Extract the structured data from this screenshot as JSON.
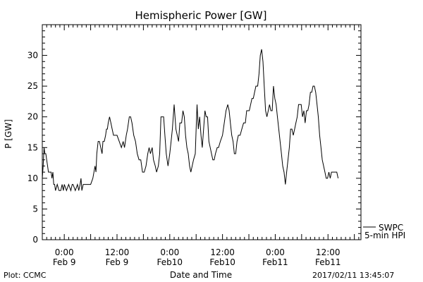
{
  "chart_data": {
    "type": "line",
    "title": "Hemispheric Power [GW]",
    "xlabel": "Date and Time",
    "ylabel": "P [GW]",
    "ylim": [
      0,
      35
    ],
    "y_ticks": [
      0,
      5,
      10,
      15,
      20,
      25,
      30
    ],
    "xlim_hours": [
      -5,
      67.5
    ],
    "x_ticks": [
      {
        "hour": 0,
        "time": "0:00",
        "date": "Feb 9"
      },
      {
        "hour": 12,
        "time": "12:00",
        "date": "Feb 9"
      },
      {
        "hour": 24,
        "time": "0:00",
        "date": "Feb10"
      },
      {
        "hour": 36,
        "time": "12:00",
        "date": "Feb10"
      },
      {
        "hour": 48,
        "time": "0:00",
        "date": "Feb11"
      },
      {
        "hour": 60,
        "time": "12:00",
        "date": "Feb11"
      }
    ],
    "grid": false,
    "legend": {
      "placement": "bottom-right",
      "entries": [
        "SWPC",
        "5-min HPI"
      ]
    },
    "series": [
      {
        "name": "SWPC 5-min HPI",
        "points": [
          [
            -5,
            10
          ],
          [
            -4.8,
            12
          ],
          [
            -4.6,
            15
          ],
          [
            -4.4,
            14
          ],
          [
            -4.2,
            14
          ],
          [
            -4,
            13
          ],
          [
            -3.8,
            12
          ],
          [
            -3.6,
            11
          ],
          [
            -3.4,
            11
          ],
          [
            -3.2,
            11
          ],
          [
            -3,
            11
          ],
          [
            -2.8,
            10
          ],
          [
            -2.6,
            11
          ],
          [
            -2.4,
            9
          ],
          [
            -2.2,
            9
          ],
          [
            -2,
            8
          ],
          [
            -1.6,
            9
          ],
          [
            -1.2,
            8
          ],
          [
            -0.8,
            8
          ],
          [
            -0.5,
            9
          ],
          [
            -0.2,
            8
          ],
          [
            0,
            9
          ],
          [
            0.5,
            8
          ],
          [
            1,
            9
          ],
          [
            1.5,
            8
          ],
          [
            1.8,
            9
          ],
          [
            2,
            9
          ],
          [
            2.5,
            8
          ],
          [
            3,
            9
          ],
          [
            3.3,
            8
          ],
          [
            3.6,
            9
          ],
          [
            3.8,
            10
          ],
          [
            4,
            8
          ],
          [
            4.3,
            9
          ],
          [
            4.7,
            9
          ],
          [
            5.2,
            9
          ],
          [
            5.6,
            9
          ],
          [
            6,
            9
          ],
          [
            6.5,
            10
          ],
          [
            7,
            12
          ],
          [
            7.2,
            11
          ],
          [
            7.4,
            14
          ],
          [
            7.7,
            16
          ],
          [
            8,
            16
          ],
          [
            8.3,
            15
          ],
          [
            8.6,
            14
          ],
          [
            8.8,
            16
          ],
          [
            9.1,
            16
          ],
          [
            9.4,
            17
          ],
          [
            9.6,
            18
          ],
          [
            9.8,
            18
          ],
          [
            10,
            19
          ],
          [
            10.3,
            20
          ],
          [
            10.6,
            19
          ],
          [
            10.9,
            18
          ],
          [
            11.2,
            17
          ],
          [
            12,
            17
          ],
          [
            12.5,
            16
          ],
          [
            13,
            15
          ],
          [
            13.4,
            16
          ],
          [
            13.7,
            15
          ],
          [
            14.1,
            17
          ],
          [
            14.4,
            18
          ],
          [
            14.8,
            20
          ],
          [
            15.1,
            20
          ],
          [
            15.4,
            19
          ],
          [
            15.8,
            17
          ],
          [
            16.2,
            16
          ],
          [
            16.6,
            14
          ],
          [
            17,
            13
          ],
          [
            17.4,
            13
          ],
          [
            17.8,
            11
          ],
          [
            18.2,
            11
          ],
          [
            18.6,
            12
          ],
          [
            19,
            14
          ],
          [
            19.3,
            15
          ],
          [
            19.6,
            14
          ],
          [
            20,
            15
          ],
          [
            20.3,
            13
          ],
          [
            20.7,
            12
          ],
          [
            21,
            11
          ],
          [
            21.4,
            12
          ],
          [
            21.7,
            14
          ],
          [
            22,
            20
          ],
          [
            22.3,
            20
          ],
          [
            22.6,
            20
          ],
          [
            22.9,
            17
          ],
          [
            23.2,
            14
          ],
          [
            23.6,
            12
          ],
          [
            24,
            14
          ],
          [
            24.3,
            16
          ],
          [
            24.6,
            18
          ],
          [
            25,
            22
          ],
          [
            25.4,
            18
          ],
          [
            25.7,
            17
          ],
          [
            26,
            16
          ],
          [
            26.3,
            19
          ],
          [
            26.7,
            19
          ],
          [
            27,
            21
          ],
          [
            27.3,
            20
          ],
          [
            27.6,
            17
          ],
          [
            27.9,
            15
          ],
          [
            28.2,
            14
          ],
          [
            28.5,
            12
          ],
          [
            28.8,
            11
          ],
          [
            29.1,
            12
          ],
          [
            29.4,
            13
          ],
          [
            29.8,
            14
          ],
          [
            30,
            18
          ],
          [
            30.2,
            22
          ],
          [
            30.5,
            18
          ],
          [
            30.8,
            20
          ],
          [
            31.1,
            17
          ],
          [
            31.4,
            15
          ],
          [
            31.7,
            18
          ],
          [
            32,
            21
          ],
          [
            32.3,
            20
          ],
          [
            32.6,
            20
          ],
          [
            32.9,
            16
          ],
          [
            33.2,
            15
          ],
          [
            33.5,
            14
          ],
          [
            33.8,
            13
          ],
          [
            34.1,
            13
          ],
          [
            34.4,
            14
          ],
          [
            34.8,
            15
          ],
          [
            35.1,
            15
          ],
          [
            35.5,
            16
          ],
          [
            36,
            17
          ],
          [
            36.4,
            19
          ],
          [
            36.8,
            21
          ],
          [
            37.2,
            22
          ],
          [
            37.5,
            21
          ],
          [
            37.8,
            19
          ],
          [
            38.1,
            17
          ],
          [
            38.4,
            16
          ],
          [
            38.7,
            14
          ],
          [
            39,
            14
          ],
          [
            39.3,
            16
          ],
          [
            39.6,
            17
          ],
          [
            40,
            17
          ],
          [
            40.4,
            18
          ],
          [
            40.8,
            19
          ],
          [
            41.2,
            19
          ],
          [
            41.5,
            21
          ],
          [
            41.8,
            21
          ],
          [
            42.1,
            21
          ],
          [
            42.4,
            22
          ],
          [
            42.7,
            23
          ],
          [
            43,
            23
          ],
          [
            43.3,
            24
          ],
          [
            43.6,
            25
          ],
          [
            44,
            25
          ],
          [
            44.3,
            27
          ],
          [
            44.6,
            30
          ],
          [
            44.9,
            31
          ],
          [
            45.2,
            29
          ],
          [
            45.5,
            25
          ],
          [
            45.8,
            21
          ],
          [
            46.1,
            20
          ],
          [
            46.4,
            21
          ],
          [
            46.7,
            22
          ],
          [
            47,
            21
          ],
          [
            47.3,
            21
          ],
          [
            47.6,
            25
          ],
          [
            47.9,
            23
          ],
          [
            48.2,
            22
          ],
          [
            48.5,
            20
          ],
          [
            48.8,
            18
          ],
          [
            49.1,
            16
          ],
          [
            49.4,
            14
          ],
          [
            49.7,
            12
          ],
          [
            50,
            11
          ],
          [
            50.3,
            9
          ],
          [
            50.6,
            11
          ],
          [
            50.9,
            13
          ],
          [
            51.2,
            15
          ],
          [
            51.5,
            18
          ],
          [
            51.8,
            18
          ],
          [
            52.1,
            17
          ],
          [
            52.4,
            18
          ],
          [
            52.7,
            19
          ],
          [
            53,
            20
          ],
          [
            53.3,
            22
          ],
          [
            53.6,
            22
          ],
          [
            53.9,
            22
          ],
          [
            54.2,
            20
          ],
          [
            54.5,
            21
          ],
          [
            54.8,
            19
          ],
          [
            55.1,
            21
          ],
          [
            55.4,
            21
          ],
          [
            55.7,
            22
          ],
          [
            56,
            24
          ],
          [
            56.3,
            24
          ],
          [
            56.6,
            25
          ],
          [
            56.9,
            25
          ],
          [
            57.2,
            24
          ],
          [
            57.5,
            22
          ],
          [
            57.8,
            20
          ],
          [
            58.1,
            17
          ],
          [
            58.4,
            15
          ],
          [
            58.7,
            13
          ],
          [
            59,
            12
          ],
          [
            59.3,
            11
          ],
          [
            59.6,
            10
          ],
          [
            59.9,
            10
          ],
          [
            60.2,
            11
          ],
          [
            60.5,
            10
          ],
          [
            60.8,
            11
          ],
          [
            61.2,
            11
          ],
          [
            61.6,
            11
          ],
          [
            62,
            11
          ],
          [
            62.3,
            10
          ]
        ]
      }
    ]
  },
  "legend_line1": "SWPC",
  "legend_line2": "5-min HPI",
  "footer": {
    "plot_credit": "Plot: CCMC",
    "timestamp": "2017/02/11 13:45:07"
  }
}
